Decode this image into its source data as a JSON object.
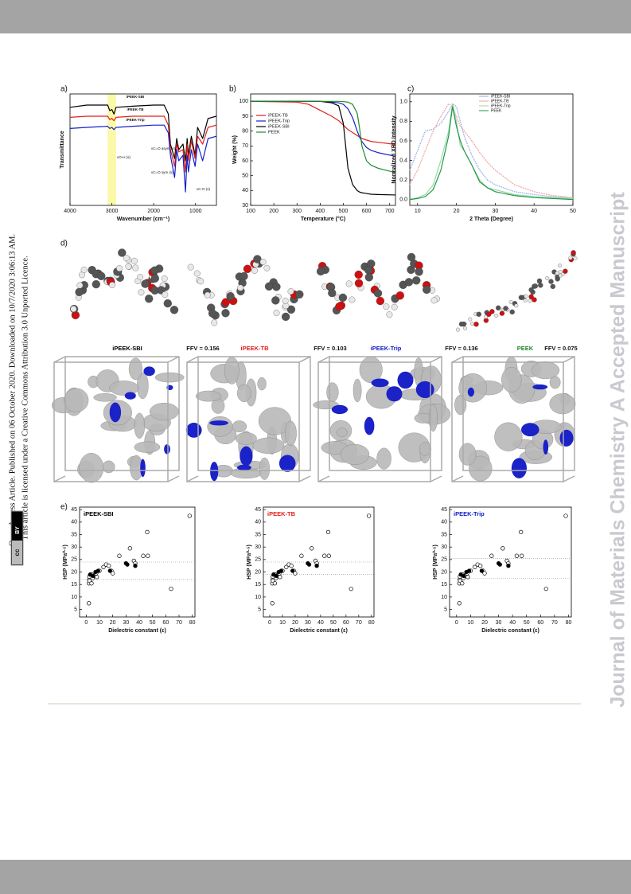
{
  "sidebar": {
    "line1": "Open Access Article. Published on 06 October 2020. Downloaded on 10/7/2020 3:06:13 AM.",
    "line2": "This article is licensed under a Creative Commons Attribution 3.0 Unported Licence.",
    "badge_cc": "cc",
    "badge_by": "BY"
  },
  "watermark": "Journal of Materials Chemistry A Accepted Manuscript",
  "figure": {
    "panel_a": {
      "label": "a)",
      "xlabel": "Wavenumber (cm⁻¹)",
      "ylabel": "Transmittance",
      "xlim": [
        4000,
        500
      ],
      "ylim": [
        0,
        1
      ],
      "xticks": [
        4000,
        3000,
        2000,
        1000
      ],
      "highlight_range": [
        3100,
        2900
      ],
      "annotations": [
        "νO-H (s)",
        "νC=O asym (s)",
        "νC=O sym (s)",
        "νC-O (s)"
      ],
      "x": [
        4000,
        3600,
        3100,
        3050,
        3000,
        2950,
        2900,
        2500,
        2000,
        1750,
        1650,
        1600,
        1500,
        1450,
        1400,
        1300,
        1240,
        1200,
        1170,
        1100,
        1010,
        950,
        830,
        700,
        500
      ],
      "series": [
        {
          "name": "iPEEK-SBI",
          "color": "#000000",
          "values": [
            0.88,
            0.9,
            0.9,
            0.85,
            0.86,
            0.82,
            0.88,
            0.89,
            0.9,
            0.9,
            0.82,
            0.55,
            0.42,
            0.6,
            0.5,
            0.55,
            0.4,
            0.6,
            0.45,
            0.62,
            0.45,
            0.7,
            0.6,
            0.78,
            0.8
          ]
        },
        {
          "name": "iPEEK-TB",
          "color": "#e0201b",
          "values": [
            0.79,
            0.8,
            0.8,
            0.77,
            0.78,
            0.76,
            0.79,
            0.8,
            0.8,
            0.8,
            0.72,
            0.5,
            0.35,
            0.55,
            0.48,
            0.5,
            0.3,
            0.55,
            0.4,
            0.58,
            0.42,
            0.62,
            0.55,
            0.7,
            0.72
          ]
        },
        {
          "name": "iPEEK-Trip",
          "color": "#1520c8",
          "values": [
            0.69,
            0.7,
            0.71,
            0.69,
            0.7,
            0.68,
            0.7,
            0.71,
            0.72,
            0.72,
            0.65,
            0.45,
            0.25,
            0.5,
            0.4,
            0.45,
            0.12,
            0.45,
            0.3,
            0.5,
            0.35,
            0.55,
            0.4,
            0.6,
            0.62
          ]
        }
      ]
    },
    "panel_b": {
      "label": "b)",
      "xlabel": "Temperature (°C)",
      "ylabel": "Weight (%)",
      "xlim": [
        100,
        725
      ],
      "ylim": [
        30,
        105
      ],
      "xticks": [
        100,
        200,
        300,
        400,
        500,
        600,
        700
      ],
      "yticks": [
        30,
        40,
        50,
        60,
        70,
        80,
        90,
        100
      ],
      "x": [
        100,
        300,
        350,
        400,
        450,
        480,
        500,
        520,
        540,
        560,
        570,
        580,
        600,
        620,
        650,
        725
      ],
      "series": [
        {
          "name": "iPEEK-TB",
          "color": "#e0201b",
          "values": [
            100,
            99.5,
            98,
            94,
            90,
            87,
            84,
            81,
            79,
            77,
            76,
            75,
            74,
            73,
            72.5,
            71
          ]
        },
        {
          "name": "iPEEK-Trip",
          "color": "#1520c8",
          "values": [
            100,
            100,
            100,
            100,
            99.5,
            99,
            98,
            95,
            89,
            80,
            76,
            73,
            69,
            67,
            65.5,
            63
          ]
        },
        {
          "name": "iPEEK-SBI",
          "color": "#000000",
          "values": [
            100,
            100,
            100,
            100,
            99,
            97,
            85,
            55,
            44,
            40,
            39,
            38.5,
            38,
            37.5,
            37.3,
            37
          ]
        },
        {
          "name": "PEEK",
          "color": "#1f8a2a",
          "values": [
            100,
            100,
            100,
            100,
            100,
            100,
            99.8,
            99.5,
            98,
            92,
            82,
            70,
            60,
            57,
            55,
            52
          ]
        }
      ]
    },
    "panel_c": {
      "label": "c)",
      "xlabel": "2 Theta (Degree)",
      "ylabel": "Normalized XRD Intensity",
      "xlim": [
        8,
        50
      ],
      "ylim": [
        -0.06,
        1.08
      ],
      "xticks": [
        10,
        20,
        30,
        40,
        50
      ],
      "yticks": [
        {
          "value": 0,
          "label": "0.0"
        },
        {
          "value": 0.2,
          "label": "0.2"
        },
        {
          "value": 0.4,
          "label": "0.4"
        },
        {
          "value": 0.6,
          "label": "0.6"
        },
        {
          "value": 0.8,
          "label": "0.8"
        },
        {
          "value": 1,
          "label": "1.0"
        }
      ],
      "x": [
        8,
        10,
        12,
        14,
        16,
        18,
        19,
        20,
        21,
        22,
        24,
        26,
        28,
        30,
        35,
        40,
        45,
        50
      ],
      "series": [
        {
          "name": "iPEEK-SBI",
          "color": "#8fa6e6",
          "values": [
            0.3,
            0.5,
            0.7,
            0.72,
            0.78,
            0.9,
            0.98,
            0.95,
            0.8,
            0.65,
            0.45,
            0.3,
            0.2,
            0.15,
            0.08,
            0.05,
            0.03,
            0.02
          ]
        },
        {
          "name": "iPEEK-TB",
          "color": "#f0a2a2",
          "values": [
            0.15,
            0.3,
            0.5,
            0.7,
            0.85,
            0.98,
            0.95,
            0.85,
            0.75,
            0.7,
            0.6,
            0.48,
            0.38,
            0.3,
            0.15,
            0.08,
            0.04,
            0.02
          ]
        },
        {
          "name": "iPEEK-Trip",
          "color": "#9fd7a5",
          "values": [
            0.0,
            0.02,
            0.05,
            0.15,
            0.4,
            0.7,
            0.98,
            0.8,
            0.55,
            0.5,
            0.35,
            0.2,
            0.12,
            0.1,
            0.05,
            0.03,
            0.02,
            0.01
          ]
        },
        {
          "name": "PEEK",
          "color": "#1f9a4a",
          "values": [
            0.0,
            0.01,
            0.03,
            0.1,
            0.3,
            0.65,
            0.95,
            0.75,
            0.6,
            0.5,
            0.35,
            0.18,
            0.12,
            0.08,
            0.04,
            0.02,
            0.01,
            0.0
          ]
        }
      ]
    },
    "panel_d": {
      "label": "d)",
      "polymers": [
        {
          "name": "iPEEK-SBI",
          "color": "#000000",
          "ffv": "FFV = 0.156"
        },
        {
          "name": "iPEEK-TB",
          "color": "#e0201b",
          "ffv": "FFV = 0.103"
        },
        {
          "name": "iPEEK-Trip",
          "color": "#1520c8",
          "ffv": "FFV = 0.136"
        },
        {
          "name": "PEEK",
          "color": "#1f8a2a",
          "ffv": "FFV = 0.075"
        }
      ]
    },
    "panel_e": {
      "label": "e)",
      "plots": [
        {
          "title": "iPEEK-SBI",
          "title_color": "#000000",
          "reference_lines": [
            24,
            17
          ]
        },
        {
          "title": "iPEEK-TB",
          "title_color": "#e0201b",
          "reference_lines": [
            24,
            19
          ]
        },
        {
          "title": "iPEEK-Trip",
          "title_color": "#1520c8",
          "reference_lines": [
            25.5,
            17.5
          ]
        }
      ],
      "xlabel": "Dielectric constant (ε)",
      "ylabel": "HSP (MPa⁰·⁵)",
      "xlim": [
        -5,
        82
      ],
      "ylim": [
        2,
        46
      ],
      "xticks": [
        0,
        10,
        20,
        30,
        40,
        50,
        60,
        70,
        80
      ],
      "yticks": [
        5,
        10,
        15,
        20,
        25,
        30,
        35,
        40,
        45
      ],
      "points_open": {
        "x": [
          2,
          2,
          2.3,
          2.4,
          2.5,
          4,
          4.3,
          4.8,
          6,
          7.5,
          8,
          10,
          13,
          15,
          17,
          19,
          20,
          25,
          33,
          36,
          37,
          43,
          46,
          46.5,
          64,
          78
        ],
        "y": [
          7.5,
          15.5,
          17,
          18.2,
          16.5,
          15.5,
          19,
          17.5,
          18.5,
          19.5,
          18,
          20.5,
          22,
          23,
          22.5,
          20.5,
          19.5,
          26.5,
          29.5,
          24.5,
          23.5,
          26.5,
          36,
          26.5,
          13.3,
          42.5
        ]
      },
      "points_filled": {
        "x": [
          3,
          5,
          7,
          9,
          18,
          30,
          31,
          37
        ],
        "y": [
          19,
          18.5,
          20,
          20.5,
          20.5,
          23.5,
          23,
          22.5
        ]
      }
    }
  }
}
